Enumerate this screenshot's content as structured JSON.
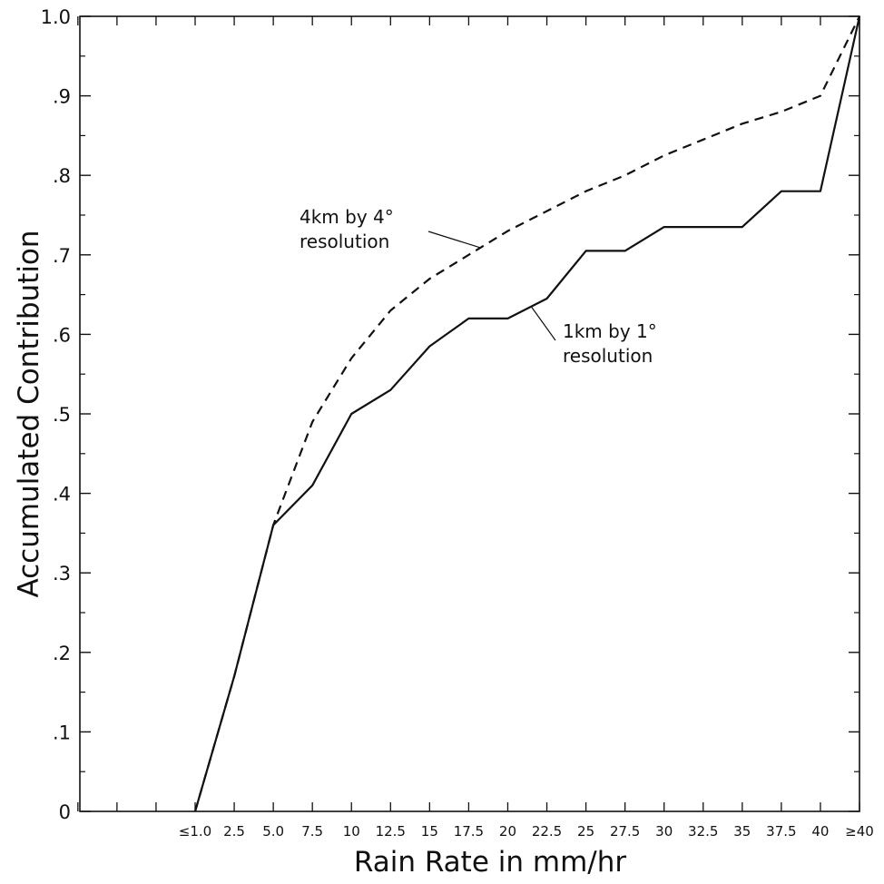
{
  "chart_data": {
    "type": "line",
    "xlabel": "Rain Rate in mm/hr",
    "ylabel": "Accumulated Contribution",
    "categories": [
      "≤1.0",
      "2.5",
      "5.0",
      "7.5",
      "10",
      "12.5",
      "15",
      "17.5",
      "20",
      "22.5",
      "25",
      "27.5",
      "30",
      "32.5",
      "35",
      "37.5",
      "40",
      "≥40"
    ],
    "ylim": [
      0,
      1.0
    ],
    "y_ticks": [
      {
        "value": 0,
        "label": "0"
      },
      {
        "value": 0.1,
        "label": ".1"
      },
      {
        "value": 0.2,
        "label": ".2"
      },
      {
        "value": 0.3,
        "label": ".3"
      },
      {
        "value": 0.4,
        "label": ".4"
      },
      {
        "value": 0.5,
        "label": ".5"
      },
      {
        "value": 0.6,
        "label": ".6"
      },
      {
        "value": 0.7,
        "label": ".7"
      },
      {
        "value": 0.8,
        "label": ".8"
      },
      {
        "value": 0.9,
        "label": ".9"
      },
      {
        "value": 1.0,
        "label": "1.0"
      }
    ],
    "series": [
      {
        "line_style": "dashed",
        "values": [
          0,
          0.17,
          0.36,
          0.49,
          0.57,
          0.63,
          0.67,
          0.7,
          0.73,
          0.755,
          0.78,
          0.8,
          0.825,
          0.845,
          0.865,
          0.88,
          0.9,
          1.0
        ]
      },
      {
        "line_style": "solid",
        "values": [
          0,
          0.17,
          0.36,
          0.41,
          0.5,
          0.53,
          0.585,
          0.62,
          0.62,
          0.645,
          0.705,
          0.705,
          0.735,
          0.735,
          0.735,
          0.78,
          0.78,
          1.0
        ]
      }
    ],
    "annotations": [
      {
        "lines": [
          "4km by 4°",
          "resolution"
        ],
        "points_to_series": 0
      },
      {
        "lines": [
          "1km by 1°",
          "resolution"
        ],
        "points_to_series": 1
      }
    ],
    "grid": false,
    "colors": {
      "line": "#111111",
      "background": "#ffffff"
    }
  }
}
